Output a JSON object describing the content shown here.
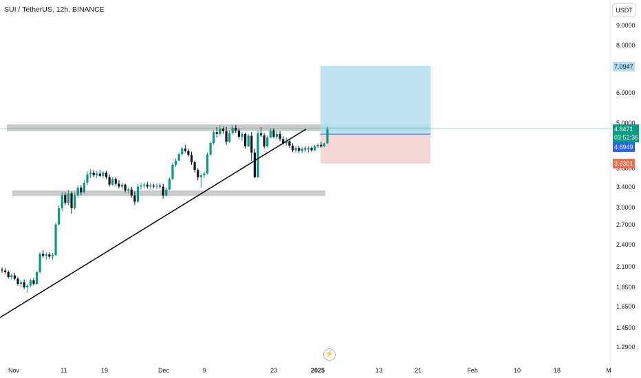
{
  "symbol_title": "SUI / TetherUS, 12h, BINANCE",
  "currency_button": "USDT",
  "price_axis": {
    "ticks": [
      {
        "label": "9.0000",
        "value": 9.0
      },
      {
        "label": "8.0000",
        "value": 8.0
      },
      {
        "label": "6.0000",
        "value": 6.0
      },
      {
        "label": "5.0000",
        "value": 5.0
      },
      {
        "label": "3.8000",
        "value": 3.8
      },
      {
        "label": "3.4000",
        "value": 3.4
      },
      {
        "label": "3.0000",
        "value": 3.0
      },
      {
        "label": "2.7000",
        "value": 2.7
      },
      {
        "label": "2.4000",
        "value": 2.4
      },
      {
        "label": "2.1000",
        "value": 2.1
      },
      {
        "label": "1.8500",
        "value": 1.85
      },
      {
        "label": "1.6500",
        "value": 1.65
      },
      {
        "label": "1.4500",
        "value": 1.45
      },
      {
        "label": "1.2900",
        "value": 1.29
      }
    ],
    "scale": "log"
  },
  "time_axis": {
    "labels": [
      "Nov",
      "11",
      "19",
      "Dec",
      "9",
      "23",
      "2025",
      "13",
      "21",
      "Feb",
      "10",
      "18",
      "M"
    ]
  },
  "badges": {
    "target": "7.0947",
    "current_price": "4.8471",
    "countdown": "03:52:36",
    "entry": "4.6949",
    "stop": "3.9301"
  },
  "position": {
    "type": "long",
    "entry": 4.6949,
    "target": 7.0947,
    "stop": 3.9301
  },
  "zones": [
    {
      "name": "resistance",
      "low": 4.78,
      "high": 4.98
    },
    {
      "name": "support",
      "low": 3.23,
      "high": 3.34
    }
  ],
  "trendline": {
    "from": {
      "date": "Oct 28",
      "price": 1.55
    },
    "to": {
      "date": "Dec 31",
      "price": 4.84
    }
  },
  "colors": {
    "up": "#089981",
    "down": "#131722",
    "profit_zone": "#b2dfec",
    "loss_zone": "#f2d3cd",
    "zone_gray": "#a8a8a8",
    "entry": "#2962ff",
    "stop": "#f26b4d"
  },
  "candles": [
    [
      2.07,
      2.1,
      2.03,
      2.06
    ],
    [
      2.06,
      2.09,
      2.02,
      2.04
    ],
    [
      2.04,
      2.06,
      1.96,
      1.98
    ],
    [
      1.98,
      2.02,
      1.95,
      2.0
    ],
    [
      2.0,
      2.03,
      1.94,
      1.96
    ],
    [
      1.96,
      1.98,
      1.88,
      1.9
    ],
    [
      1.9,
      1.94,
      1.86,
      1.92
    ],
    [
      1.92,
      1.95,
      1.84,
      1.86
    ],
    [
      1.86,
      1.9,
      1.8,
      1.88
    ],
    [
      1.88,
      1.96,
      1.86,
      1.94
    ],
    [
      1.94,
      1.97,
      1.88,
      1.9
    ],
    [
      1.9,
      2.05,
      1.89,
      2.04
    ],
    [
      2.04,
      2.3,
      2.02,
      2.28
    ],
    [
      2.28,
      2.33,
      2.22,
      2.25
    ],
    [
      2.25,
      2.3,
      2.2,
      2.27
    ],
    [
      2.27,
      2.3,
      2.21,
      2.24
    ],
    [
      2.24,
      2.29,
      2.2,
      2.26
    ],
    [
      2.26,
      2.75,
      2.25,
      2.72
    ],
    [
      2.72,
      3.05,
      2.7,
      3.0
    ],
    [
      3.0,
      3.3,
      2.95,
      3.25
    ],
    [
      3.25,
      3.3,
      3.05,
      3.1
    ],
    [
      3.1,
      3.35,
      3.05,
      3.28
    ],
    [
      3.28,
      3.32,
      2.9,
      3.0
    ],
    [
      3.0,
      3.3,
      2.98,
      3.24
    ],
    [
      3.24,
      3.45,
      3.2,
      3.4
    ],
    [
      3.4,
      3.45,
      3.25,
      3.3
    ],
    [
      3.3,
      3.55,
      3.28,
      3.5
    ],
    [
      3.5,
      3.75,
      3.45,
      3.68
    ],
    [
      3.68,
      3.8,
      3.6,
      3.72
    ],
    [
      3.72,
      3.78,
      3.62,
      3.66
    ],
    [
      3.66,
      3.76,
      3.6,
      3.7
    ],
    [
      3.7,
      3.78,
      3.62,
      3.65
    ],
    [
      3.65,
      3.76,
      3.6,
      3.72
    ],
    [
      3.72,
      3.76,
      3.58,
      3.62
    ],
    [
      3.62,
      3.68,
      3.42,
      3.46
    ],
    [
      3.46,
      3.62,
      3.44,
      3.58
    ],
    [
      3.58,
      3.62,
      3.44,
      3.48
    ],
    [
      3.48,
      3.56,
      3.38,
      3.42
    ],
    [
      3.42,
      3.5,
      3.36,
      3.46
    ],
    [
      3.46,
      3.48,
      3.3,
      3.34
    ],
    [
      3.34,
      3.4,
      3.28,
      3.36
    ],
    [
      3.36,
      3.42,
      3.2,
      3.24
    ],
    [
      3.24,
      3.32,
      3.06,
      3.12
    ],
    [
      3.12,
      3.48,
      3.1,
      3.42
    ],
    [
      3.42,
      3.5,
      3.36,
      3.44
    ],
    [
      3.44,
      3.52,
      3.38,
      3.46
    ],
    [
      3.46,
      3.52,
      3.38,
      3.42
    ],
    [
      3.42,
      3.5,
      3.36,
      3.44
    ],
    [
      3.44,
      3.48,
      3.38,
      3.42
    ],
    [
      3.42,
      3.48,
      3.36,
      3.44
    ],
    [
      3.44,
      3.48,
      3.38,
      3.42
    ],
    [
      3.42,
      3.48,
      3.18,
      3.24
    ],
    [
      3.24,
      3.4,
      3.22,
      3.36
    ],
    [
      3.36,
      3.62,
      3.34,
      3.58
    ],
    [
      3.58,
      3.95,
      3.56,
      3.9
    ],
    [
      3.9,
      4.05,
      3.85,
      4.0
    ],
    [
      4.0,
      4.2,
      3.98,
      4.16
    ],
    [
      4.16,
      4.36,
      4.12,
      4.3
    ],
    [
      4.3,
      4.4,
      4.2,
      4.24
    ],
    [
      4.24,
      4.3,
      4.1,
      4.14
    ],
    [
      4.14,
      4.22,
      3.9,
      3.96
    ],
    [
      3.96,
      4.0,
      3.72,
      3.78
    ],
    [
      3.78,
      3.82,
      3.55,
      3.62
    ],
    [
      3.62,
      3.7,
      3.4,
      3.66
    ],
    [
      3.66,
      3.74,
      3.6,
      3.7
    ],
    [
      3.7,
      4.2,
      3.68,
      4.15
    ],
    [
      4.15,
      4.5,
      4.12,
      4.45
    ],
    [
      4.45,
      4.8,
      4.4,
      4.75
    ],
    [
      4.75,
      4.9,
      4.6,
      4.7
    ],
    [
      4.7,
      4.96,
      4.65,
      4.85
    ],
    [
      4.85,
      4.92,
      4.7,
      4.78
    ],
    [
      4.78,
      4.9,
      4.4,
      4.48
    ],
    [
      4.48,
      4.8,
      4.45,
      4.72
    ],
    [
      4.72,
      4.95,
      4.68,
      4.88
    ],
    [
      4.88,
      4.96,
      4.72,
      4.8
    ],
    [
      4.8,
      4.86,
      4.55,
      4.62
    ],
    [
      4.62,
      4.76,
      4.5,
      4.7
    ],
    [
      4.7,
      4.74,
      4.3,
      4.36
    ],
    [
      4.36,
      4.7,
      4.34,
      4.65
    ],
    [
      4.65,
      4.76,
      4.0,
      4.2
    ],
    [
      4.2,
      4.3,
      3.6,
      3.62
    ],
    [
      3.62,
      4.8,
      3.6,
      4.72
    ],
    [
      4.72,
      4.9,
      4.62,
      4.66
    ],
    [
      4.66,
      4.72,
      4.3,
      4.36
    ],
    [
      4.36,
      4.66,
      4.34,
      4.6
    ],
    [
      4.6,
      4.86,
      4.58,
      4.8
    ],
    [
      4.8,
      4.86,
      4.58,
      4.62
    ],
    [
      4.62,
      4.78,
      4.55,
      4.7
    ],
    [
      4.7,
      4.78,
      4.5,
      4.56
    ],
    [
      4.56,
      4.64,
      4.4,
      4.44
    ],
    [
      4.44,
      4.6,
      4.38,
      4.5
    ],
    [
      4.5,
      4.56,
      4.32,
      4.38
    ],
    [
      4.38,
      4.44,
      4.22,
      4.26
    ],
    [
      4.26,
      4.36,
      4.2,
      4.32
    ],
    [
      4.32,
      4.38,
      4.2,
      4.24
    ],
    [
      4.24,
      4.34,
      4.18,
      4.3
    ],
    [
      4.3,
      4.36,
      4.22,
      4.28
    ],
    [
      4.28,
      4.36,
      4.2,
      4.32
    ],
    [
      4.32,
      4.36,
      4.22,
      4.26
    ],
    [
      4.26,
      4.4,
      4.24,
      4.36
    ],
    [
      4.36,
      4.44,
      4.3,
      4.4
    ],
    [
      4.4,
      4.48,
      4.32,
      4.36
    ],
    [
      4.36,
      4.46,
      4.34,
      4.44
    ],
    [
      4.44,
      4.92,
      4.42,
      4.85
    ]
  ],
  "bolt_button": "⚡"
}
